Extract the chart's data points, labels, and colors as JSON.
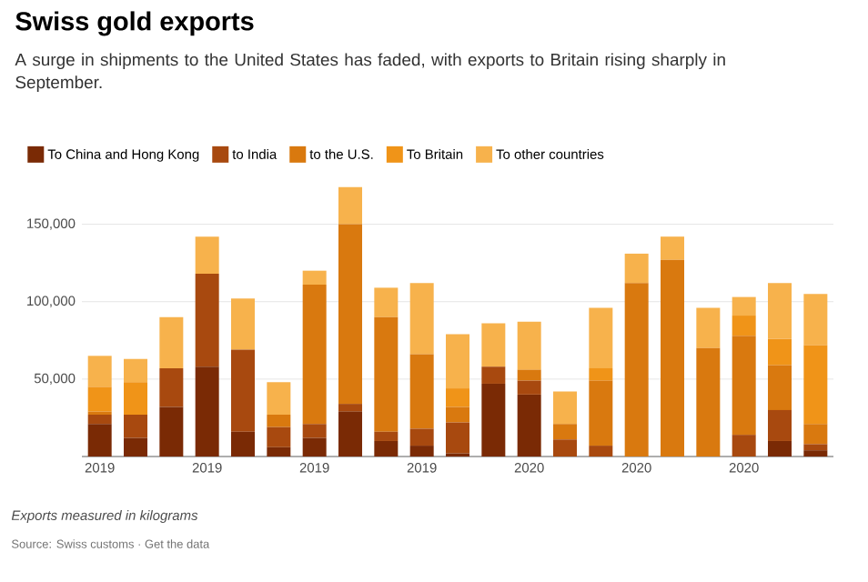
{
  "chart_data": {
    "type": "bar",
    "stacked": true,
    "title": "Swiss gold exports",
    "subtitle": "A surge in shipments to the United States has faded, with exports to Britain rising sharply in September.",
    "annotations": [
      "*Exports measured in kilograms*",
      "Source: Swiss customs · Get the data"
    ],
    "categories": [
      "2019",
      null,
      null,
      "2019",
      null,
      null,
      "2019",
      null,
      null,
      "2019",
      null,
      null,
      "2020",
      null,
      null,
      "2020",
      null,
      null,
      "2020",
      null,
      null
    ],
    "series": [
      {
        "name": "To China and Hong Kong",
        "color": "#7a2a05",
        "values": [
          21000,
          12000,
          32000,
          58000,
          16000,
          6000,
          12000,
          29000,
          10000,
          7000,
          2000,
          47000,
          40000,
          0,
          0,
          0,
          0,
          0,
          0,
          10000,
          4000
        ]
      },
      {
        "name": "to India",
        "color": "#a8490f",
        "values": [
          6000,
          15000,
          25000,
          60000,
          53000,
          13000,
          9000,
          5000,
          6000,
          11000,
          20000,
          11000,
          9000,
          11000,
          7000,
          0,
          0,
          0,
          14000,
          20000,
          4000
        ]
      },
      {
        "name": "to the U.S.",
        "color": "#d9790f",
        "values": [
          2000,
          0,
          0,
          0,
          0,
          8000,
          90000,
          116000,
          74000,
          48000,
          10000,
          0,
          7000,
          10000,
          42000,
          112000,
          127000,
          70000,
          64000,
          29000,
          13000
        ]
      },
      {
        "name": "To Britain",
        "color": "#f09418",
        "values": [
          16000,
          21000,
          0,
          0,
          0,
          0,
          0,
          0,
          0,
          0,
          12000,
          0,
          0,
          0,
          8000,
          0,
          0,
          0,
          13000,
          17000,
          51000
        ]
      },
      {
        "name": "To other countries",
        "color": "#f7b24c",
        "values": [
          20000,
          15000,
          33000,
          24000,
          33000,
          21000,
          9000,
          24000,
          19000,
          46000,
          35000,
          28000,
          31000,
          21000,
          39000,
          19000,
          15000,
          26000,
          12000,
          36000,
          33000
        ]
      }
    ],
    "ylim": [
      0,
      175000
    ],
    "yticks": [
      {
        "value": 50000,
        "label": "50,000"
      },
      {
        "value": 100000,
        "label": "100,000"
      },
      {
        "value": 150000,
        "label": "150,000"
      }
    ],
    "grid": "y",
    "legend": "top left"
  }
}
